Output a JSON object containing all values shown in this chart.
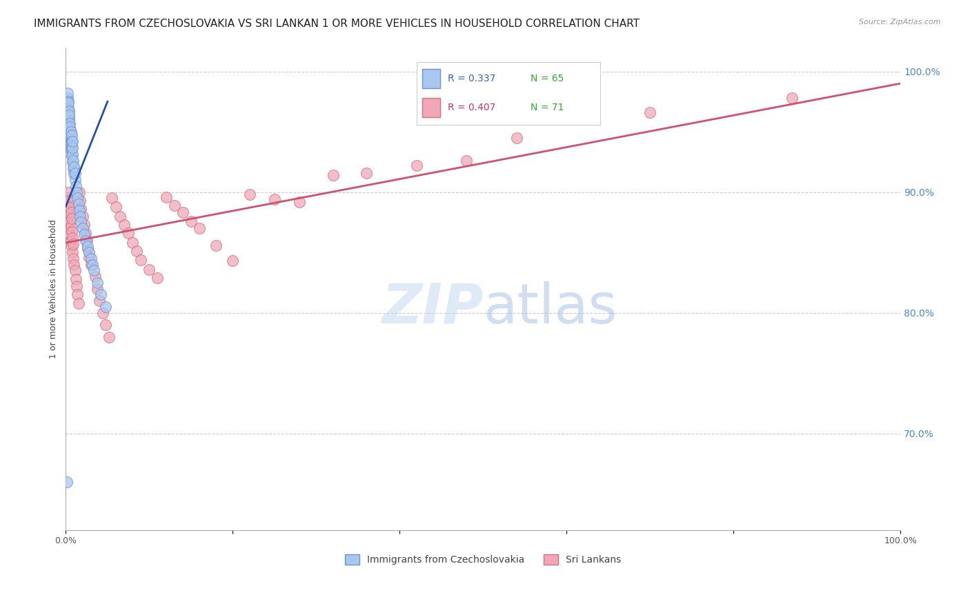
{
  "title": "IMMIGRANTS FROM CZECHOSLOVAKIA VS SRI LANKAN 1 OR MORE VEHICLES IN HOUSEHOLD CORRELATION CHART",
  "source": "Source: ZipAtlas.com",
  "ylabel": "1 or more Vehicles in Household",
  "right_yticks": [
    "100.0%",
    "90.0%",
    "80.0%",
    "70.0%"
  ],
  "right_ytick_vals": [
    1.0,
    0.9,
    0.8,
    0.7
  ],
  "legend_blue_r": "R = 0.337",
  "legend_blue_n": "N = 65",
  "legend_pink_r": "R = 0.407",
  "legend_pink_n": "N = 71",
  "blue_color": "#a8c8f0",
  "pink_color": "#f0a8b8",
  "blue_edge_color": "#7090d0",
  "pink_edge_color": "#d07080",
  "blue_line_color": "#2050b0",
  "pink_line_color": "#d05070",
  "watermark_zip": "ZIP",
  "watermark_atlas": "atlas",
  "blue_scatter_x": [
    0.001,
    0.001,
    0.002,
    0.002,
    0.002,
    0.002,
    0.003,
    0.003,
    0.003,
    0.003,
    0.003,
    0.003,
    0.003,
    0.003,
    0.004,
    0.004,
    0.004,
    0.004,
    0.004,
    0.004,
    0.004,
    0.005,
    0.005,
    0.005,
    0.005,
    0.005,
    0.005,
    0.006,
    0.006,
    0.006,
    0.006,
    0.006,
    0.007,
    0.007,
    0.007,
    0.007,
    0.008,
    0.008,
    0.008,
    0.008,
    0.009,
    0.009,
    0.01,
    0.01,
    0.011,
    0.011,
    0.012,
    0.013,
    0.014,
    0.015,
    0.016,
    0.017,
    0.018,
    0.02,
    0.022,
    0.024,
    0.026,
    0.028,
    0.03,
    0.032,
    0.034,
    0.038,
    0.042,
    0.048,
    0.001
  ],
  "blue_scatter_y": [
    0.97,
    0.975,
    0.965,
    0.972,
    0.978,
    0.982,
    0.955,
    0.962,
    0.968,
    0.975,
    0.958,
    0.963,
    0.969,
    0.974,
    0.95,
    0.956,
    0.962,
    0.967,
    0.953,
    0.959,
    0.964,
    0.945,
    0.951,
    0.957,
    0.942,
    0.948,
    0.954,
    0.938,
    0.944,
    0.95,
    0.935,
    0.941,
    0.93,
    0.936,
    0.942,
    0.947,
    0.925,
    0.931,
    0.937,
    0.942,
    0.92,
    0.926,
    0.915,
    0.921,
    0.91,
    0.916,
    0.905,
    0.9,
    0.895,
    0.89,
    0.885,
    0.88,
    0.875,
    0.87,
    0.865,
    0.86,
    0.855,
    0.85,
    0.845,
    0.84,
    0.835,
    0.825,
    0.815,
    0.805,
    0.66
  ],
  "pink_scatter_x": [
    0.001,
    0.002,
    0.002,
    0.003,
    0.003,
    0.003,
    0.004,
    0.004,
    0.004,
    0.005,
    0.005,
    0.005,
    0.006,
    0.006,
    0.006,
    0.007,
    0.007,
    0.007,
    0.008,
    0.008,
    0.009,
    0.009,
    0.01,
    0.011,
    0.012,
    0.013,
    0.014,
    0.015,
    0.016,
    0.017,
    0.018,
    0.02,
    0.022,
    0.024,
    0.025,
    0.026,
    0.028,
    0.03,
    0.035,
    0.038,
    0.04,
    0.044,
    0.048,
    0.052,
    0.055,
    0.06,
    0.065,
    0.07,
    0.075,
    0.08,
    0.085,
    0.09,
    0.1,
    0.11,
    0.12,
    0.13,
    0.14,
    0.15,
    0.16,
    0.18,
    0.2,
    0.22,
    0.25,
    0.28,
    0.32,
    0.36,
    0.42,
    0.48,
    0.54,
    0.7,
    0.87
  ],
  "pink_scatter_y": [
    0.89,
    0.88,
    0.895,
    0.875,
    0.888,
    0.9,
    0.87,
    0.882,
    0.893,
    0.865,
    0.876,
    0.887,
    0.86,
    0.872,
    0.883,
    0.855,
    0.867,
    0.878,
    0.85,
    0.862,
    0.845,
    0.857,
    0.84,
    0.835,
    0.828,
    0.822,
    0.815,
    0.808,
    0.9,
    0.893,
    0.886,
    0.88,
    0.873,
    0.866,
    0.86,
    0.853,
    0.846,
    0.84,
    0.83,
    0.82,
    0.81,
    0.8,
    0.79,
    0.78,
    0.895,
    0.888,
    0.88,
    0.873,
    0.866,
    0.858,
    0.851,
    0.844,
    0.836,
    0.829,
    0.896,
    0.889,
    0.883,
    0.876,
    0.87,
    0.856,
    0.843,
    0.898,
    0.894,
    0.892,
    0.914,
    0.916,
    0.922,
    0.926,
    0.945,
    0.966,
    0.978
  ],
  "xlim": [
    0.0,
    1.0
  ],
  "ylim": [
    0.62,
    1.02
  ],
  "blue_trendline_x": [
    0.0,
    0.05
  ],
  "blue_trendline_y": [
    0.888,
    0.975
  ],
  "pink_trendline_x": [
    0.0,
    1.0
  ],
  "pink_trendline_y": [
    0.858,
    0.99
  ],
  "title_fontsize": 11,
  "axis_label_fontsize": 9,
  "tick_fontsize": 9,
  "legend_r_color": "#3366cc",
  "legend_n_color": "#33aa33",
  "legend_pink_r_color": "#cc3366",
  "legend_pink_n_color": "#33aa33"
}
